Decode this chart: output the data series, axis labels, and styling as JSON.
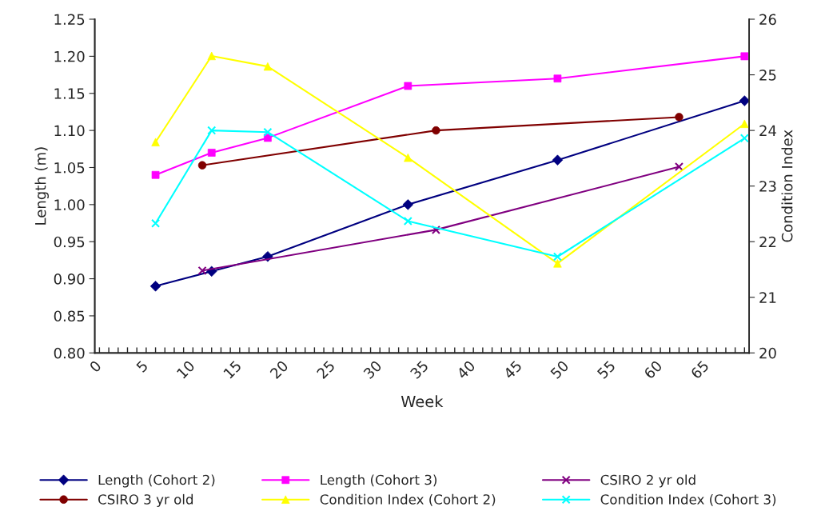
{
  "chart_data": {
    "type": "line",
    "xlabel": "Week",
    "ylabel": "Length (m)",
    "y2label": "Condition Index",
    "xlim": [
      -0.5,
      69.5
    ],
    "xticks": [
      0,
      5,
      10,
      15,
      20,
      25,
      30,
      35,
      40,
      45,
      50,
      55,
      60,
      65
    ],
    "ylim": [
      0.8,
      1.25
    ],
    "yticks": [
      {
        "value": 0.8,
        "label": "0.80"
      },
      {
        "value": 0.85,
        "label": "0.85"
      },
      {
        "value": 0.9,
        "label": "0.90"
      },
      {
        "value": 0.95,
        "label": "0.95"
      },
      {
        "value": 1.0,
        "label": "1.00"
      },
      {
        "value": 1.05,
        "label": "1.05"
      },
      {
        "value": 1.1,
        "label": "1.10"
      },
      {
        "value": 1.15,
        "label": "1.15"
      },
      {
        "value": 1.2,
        "label": "1.20"
      },
      {
        "value": 1.25,
        "label": "1.25"
      }
    ],
    "y2lim": [
      20,
      26
    ],
    "y2ticks": [
      20,
      21,
      22,
      23,
      24,
      25,
      26
    ],
    "grid": false,
    "legend": "bottom",
    "line_style": "solid",
    "series": [
      {
        "name": "Length (Cohort 2)",
        "color": "#000080",
        "marker": "diamond",
        "x": [
          6,
          12,
          18,
          33,
          49,
          69
        ],
        "values": [
          0.89,
          0.91,
          0.93,
          1.0,
          1.06,
          1.14
        ]
      },
      {
        "name": "Length (Cohort 3)",
        "color": "#ff00ff",
        "marker": "square",
        "x": [
          6,
          12,
          18,
          33,
          49,
          69
        ],
        "values": [
          1.04,
          1.07,
          1.09,
          1.16,
          1.17,
          1.2
        ]
      },
      {
        "name": "CSIRO 2 yr old",
        "color": "#800080",
        "marker": "cross",
        "x": [
          11,
          36,
          62
        ],
        "values": [
          0.911,
          0.966,
          1.051
        ]
      },
      {
        "name": "CSIRO 3 yr old",
        "color": "#800000",
        "marker": "circle",
        "x": [
          11,
          36,
          62
        ],
        "values": [
          1.053,
          1.1,
          1.118
        ]
      },
      {
        "name": "Condition Index (Cohort 2)",
        "color": "#ffff00",
        "marker": "triangle",
        "axis": "y2",
        "x": [
          6,
          12,
          18,
          33,
          49,
          69
        ],
        "values": [
          23.79,
          25.34,
          25.15,
          23.51,
          21.61,
          24.12
        ]
      },
      {
        "name": "Condition Index (Cohort 3)",
        "color": "#00ffff",
        "marker": "cross",
        "axis": "y2",
        "x": [
          6,
          12,
          18,
          33,
          49,
          69
        ],
        "values": [
          22.33,
          24.0,
          23.97,
          22.37,
          21.73,
          23.86
        ]
      }
    ]
  }
}
